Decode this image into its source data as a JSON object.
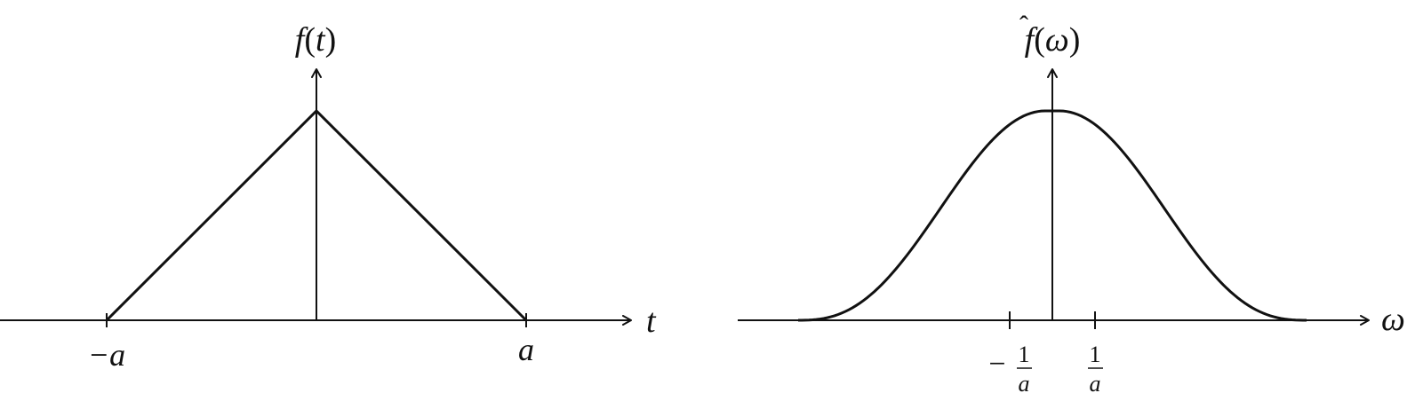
{
  "left_plot": {
    "y_label_f": "f",
    "y_label_open": "(",
    "y_label_var": "t",
    "y_label_close": ")",
    "x_label": "t",
    "tick_minus_a": "−a",
    "tick_a": "a",
    "curve": "triangle"
  },
  "right_plot": {
    "y_label_f": "f",
    "y_label_hat": "ˆ",
    "y_label_open": "(",
    "y_label_var": "ω",
    "y_label_close": ")",
    "x_label": "ω",
    "tick_minus": "−",
    "tick_num": "1",
    "tick_den": "a",
    "tick_pos_num": "1",
    "tick_pos_den": "a",
    "curve": "bell"
  },
  "colors": {
    "ink": "#111111",
    "background": "#ffffff"
  }
}
